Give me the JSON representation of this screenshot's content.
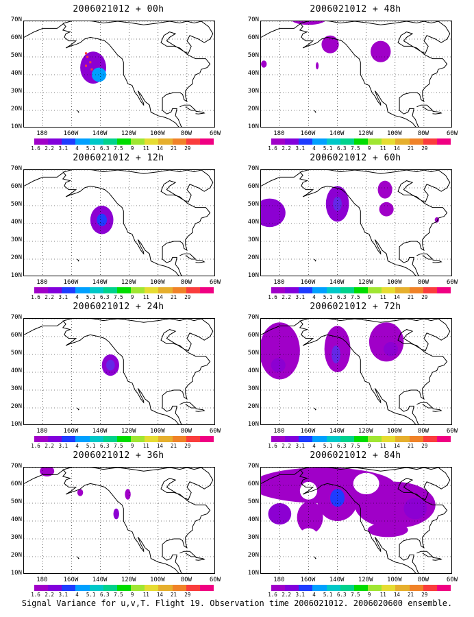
{
  "panels": [
    {
      "title": "2006021012 + 00h",
      "blobs": [
        {
          "lon": -145,
          "lat": 44,
          "rx": 9,
          "ry": 9,
          "level": 2
        },
        {
          "lon": -141,
          "lat": 40,
          "rx": 5,
          "ry": 4,
          "level": 5
        }
      ],
      "markers": [
        {
          "lon": -150,
          "lat": 52
        },
        {
          "lon": -149,
          "lat": 50
        },
        {
          "lon": -147,
          "lat": 47
        },
        {
          "lon": -150,
          "lat": 45
        },
        {
          "lon": -146,
          "lat": 43
        }
      ]
    },
    {
      "title": "2006021012 + 48h",
      "blobs": [
        {
          "lon": -160,
          "lat": 71,
          "rx": 12,
          "ry": 3,
          "level": 1
        },
        {
          "lon": -145,
          "lat": 57,
          "rx": 6,
          "ry": 5,
          "level": 1
        },
        {
          "lon": -110,
          "lat": 53,
          "rx": 7,
          "ry": 6,
          "level": 1
        },
        {
          "lon": -191,
          "lat": 46,
          "rx": 2,
          "ry": 2,
          "level": 1
        },
        {
          "lon": -154,
          "lat": 45,
          "rx": 1,
          "ry": 2,
          "level": 1
        }
      ],
      "markers": []
    },
    {
      "title": "2006021012 + 12h",
      "blobs": [
        {
          "lon": -139,
          "lat": 42,
          "rx": 8,
          "ry": 8,
          "level": 2
        },
        {
          "lon": -139,
          "lat": 42,
          "rx": 3.5,
          "ry": 3.5,
          "level": 4
        }
      ],
      "markers": []
    },
    {
      "title": "2006021012 + 60h",
      "blobs": [
        {
          "lon": -187,
          "lat": 46,
          "rx": 11,
          "ry": 8,
          "level": 2
        },
        {
          "lon": -140,
          "lat": 51,
          "rx": 8,
          "ry": 10,
          "level": 2
        },
        {
          "lon": -140,
          "lat": 51,
          "rx": 3,
          "ry": 4,
          "level": 3
        },
        {
          "lon": -107,
          "lat": 59,
          "rx": 5,
          "ry": 5,
          "level": 1
        },
        {
          "lon": -106,
          "lat": 48,
          "rx": 5,
          "ry": 4,
          "level": 1
        },
        {
          "lon": -71,
          "lat": 42,
          "rx": 1.5,
          "ry": 1.5,
          "level": 1
        }
      ],
      "markers": []
    },
    {
      "title": "2006021012 + 24h",
      "blobs": [
        {
          "lon": -133,
          "lat": 44,
          "rx": 6,
          "ry": 6,
          "level": 2
        },
        {
          "lon": -133,
          "lat": 44,
          "rx": 3,
          "ry": 3,
          "level": 3
        }
      ],
      "markers": []
    },
    {
      "title": "2006021012 + 72h",
      "blobs": [
        {
          "lon": -180,
          "lat": 52,
          "rx": 14,
          "ry": 16,
          "level": 1
        },
        {
          "lon": -181,
          "lat": 44,
          "rx": 5,
          "ry": 4,
          "level": 2
        },
        {
          "lon": -140,
          "lat": 53,
          "rx": 9,
          "ry": 13,
          "level": 1
        },
        {
          "lon": -141,
          "lat": 50,
          "rx": 3,
          "ry": 5,
          "level": 3
        },
        {
          "lon": -106,
          "lat": 57,
          "rx": 12,
          "ry": 11,
          "level": 1
        },
        {
          "lon": -103,
          "lat": 53,
          "rx": 5,
          "ry": 4,
          "level": 2
        }
      ],
      "markers": []
    },
    {
      "title": "2006021012 + 36h",
      "blobs": [
        {
          "lon": -177,
          "lat": 68,
          "rx": 5,
          "ry": 3,
          "level": 1
        },
        {
          "lon": -154,
          "lat": 56,
          "rx": 2,
          "ry": 2,
          "level": 1
        },
        {
          "lon": -121,
          "lat": 55,
          "rx": 2,
          "ry": 3,
          "level": 1
        },
        {
          "lon": -129,
          "lat": 44,
          "rx": 2,
          "ry": 3,
          "level": 2
        }
      ],
      "markers": []
    },
    {
      "title": "2006021012 + 84h",
      "blobs": [
        {
          "lon": -150,
          "lat": 60,
          "rx": 50,
          "ry": 10,
          "level": 1
        },
        {
          "lon": -140,
          "lat": 52,
          "rx": 14,
          "ry": 12,
          "level": 1
        },
        {
          "lon": -140,
          "lat": 53,
          "rx": 5,
          "ry": 5,
          "level": 4
        },
        {
          "lon": -180,
          "lat": 44,
          "rx": 8,
          "ry": 6,
          "level": 2
        },
        {
          "lon": -100,
          "lat": 49,
          "rx": 28,
          "ry": 13,
          "level": 1
        },
        {
          "lon": -86,
          "lat": 47,
          "rx": 8,
          "ry": 6,
          "level": 2
        },
        {
          "lon": -159,
          "lat": 42,
          "rx": 9,
          "ry": 9,
          "level": 1
        },
        {
          "lon": -105,
          "lat": 35,
          "rx": 14,
          "ry": 4,
          "level": 1
        }
      ],
      "holes": [
        {
          "lon": -120,
          "lat": 61,
          "rx": 9,
          "ry": 6
        },
        {
          "lon": -160,
          "lat": 57,
          "rx": 6,
          "ry": 5
        },
        {
          "lon": -160,
          "lat": 32,
          "rx": 6,
          "ry": 4
        }
      ],
      "markers": []
    }
  ],
  "axes": {
    "lat_labels": [
      "10N",
      "20N",
      "30N",
      "40N",
      "50N",
      "60N",
      "70N"
    ],
    "lon_labels": [
      "180",
      "160W",
      "140W",
      "120W",
      "100W",
      "80W",
      "60W"
    ],
    "lon_values": [
      -180,
      -160,
      -140,
      -120,
      -100,
      -80,
      -60
    ],
    "lat_values": [
      10,
      20,
      30,
      40,
      50,
      60,
      70
    ],
    "lon_range": [
      -193,
      -60
    ],
    "lat_range": [
      10,
      70
    ]
  },
  "colorbar": {
    "levels": [
      "1.6",
      "2.2",
      "3.1",
      "4",
      "5.1",
      "6.3",
      "7.5",
      "9",
      "11",
      "14",
      "21",
      "29",
      "40"
    ],
    "colors": [
      "#a000c8",
      "#8200dc",
      "#1e3cff",
      "#00a0ff",
      "#00c8c8",
      "#00d28c",
      "#00dc00",
      "#a0e632",
      "#e6dc32",
      "#e6af2d",
      "#f08228",
      "#fa3c3c",
      "#f00082"
    ]
  },
  "colors": {
    "field_levels": [
      "#a000c8",
      "#a000c8",
      "#8c00d2",
      "#6428e6",
      "#1e3cff",
      "#00a0ff"
    ],
    "marker": "#fa3c3c"
  },
  "caption": "Signal Variance for u,v,T. Flight 19. Observation time 2006021012. 2006020600 ensemble."
}
